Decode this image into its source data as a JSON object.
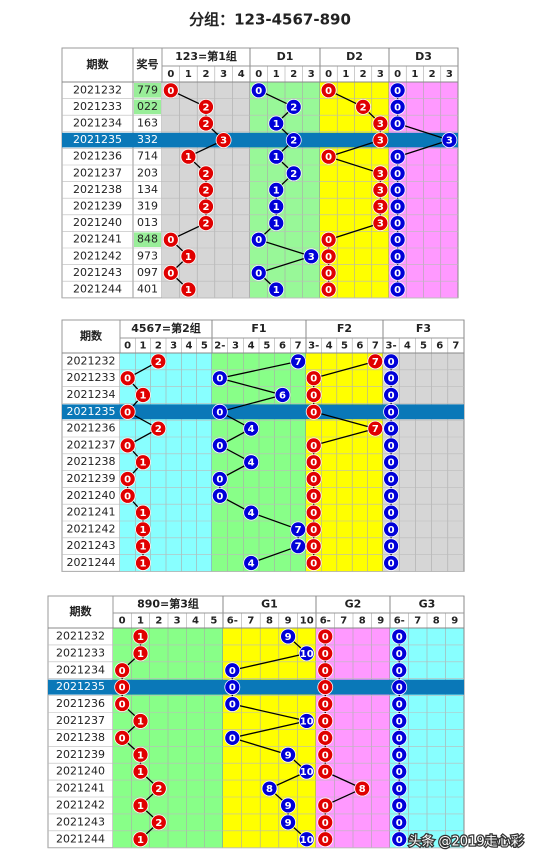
{
  "title": "分组：123-4567-890",
  "watermark": "头条 @2019走心彩",
  "tables": [
    {
      "headers": {
        "period": "期数",
        "number": "奖号"
      },
      "groups": [
        {
          "name": "123=第1组",
          "columns": [
            "0",
            "1",
            "2",
            "3",
            "4"
          ]
        },
        {
          "name": "D1",
          "columns": [
            "0",
            "1",
            "2",
            "3"
          ]
        },
        {
          "name": "D2",
          "columns": [
            "0",
            "1",
            "2",
            "3"
          ]
        },
        {
          "name": "D3",
          "columns": [
            "0",
            "1",
            "2",
            "3"
          ]
        }
      ],
      "rows": [
        {
          "period": "2021232",
          "number": "779",
          "marks": [
            "0",
            "0",
            "0",
            "0"
          ]
        },
        {
          "period": "2021233",
          "number": "022",
          "marks": [
            "2",
            "2",
            "2",
            "0"
          ]
        },
        {
          "period": "2021234",
          "number": "163",
          "marks": [
            "2",
            "1",
            "3",
            "0"
          ]
        },
        {
          "period": "2021235",
          "number": "332",
          "marks": [
            "3",
            "2",
            "3",
            "3"
          ]
        },
        {
          "period": "2021236",
          "number": "714",
          "marks": [
            "1",
            "1",
            "0",
            "0"
          ]
        },
        {
          "period": "2021237",
          "number": "203",
          "marks": [
            "2",
            "2",
            "3",
            "0"
          ]
        },
        {
          "period": "2021238",
          "number": "134",
          "marks": [
            "2",
            "1",
            "3",
            "0"
          ]
        },
        {
          "period": "2021239",
          "number": "319",
          "marks": [
            "2",
            "1",
            "3",
            "0"
          ]
        },
        {
          "period": "2021240",
          "number": "013",
          "marks": [
            "2",
            "1",
            "3",
            "0"
          ]
        },
        {
          "period": "2021241",
          "number": "848",
          "marks": [
            "0",
            "0",
            "0",
            "0"
          ]
        },
        {
          "period": "2021242",
          "number": "973",
          "marks": [
            "1",
            "3",
            "0",
            "0"
          ]
        },
        {
          "period": "2021243",
          "number": "097",
          "marks": [
            "0",
            "0",
            "0",
            "0"
          ]
        },
        {
          "period": "2021244",
          "number": "401",
          "marks": [
            "1",
            "1",
            "0",
            "0"
          ]
        }
      ]
    },
    {
      "headers": {
        "period": "期数"
      },
      "groups": [
        {
          "name": "4567=第2组",
          "columns": [
            "0",
            "1",
            "2",
            "3",
            "4",
            "5"
          ]
        },
        {
          "name": "F1",
          "columns": [
            "2-",
            "3",
            "4",
            "5",
            "6",
            "7"
          ]
        },
        {
          "name": "F2",
          "columns": [
            "3-",
            "4",
            "5",
            "6",
            "7"
          ]
        },
        {
          "name": "F3",
          "columns": [
            "3-",
            "4",
            "5",
            "6",
            "7"
          ]
        }
      ],
      "rows": [
        {
          "period": "2021232",
          "marks": [
            "2",
            "7",
            "7",
            "0"
          ]
        },
        {
          "period": "2021233",
          "marks": [
            "0",
            "0",
            "0",
            "0"
          ]
        },
        {
          "period": "2021234",
          "marks": [
            "1",
            "6",
            "0",
            "0"
          ]
        },
        {
          "period": "2021235",
          "marks": [
            "0",
            "0",
            "0",
            "0"
          ]
        },
        {
          "period": "2021236",
          "marks": [
            "2",
            "4",
            "7",
            "0"
          ]
        },
        {
          "period": "2021237",
          "marks": [
            "0",
            "0",
            "0",
            "0"
          ]
        },
        {
          "period": "2021238",
          "marks": [
            "1",
            "4",
            "0",
            "0"
          ]
        },
        {
          "period": "2021239",
          "marks": [
            "0",
            "0",
            "0",
            "0"
          ]
        },
        {
          "period": "2021240",
          "marks": [
            "0",
            "0",
            "0",
            "0"
          ]
        },
        {
          "period": "2021241",
          "marks": [
            "1",
            "4",
            "0",
            "0"
          ]
        },
        {
          "period": "2021242",
          "marks": [
            "1",
            "7",
            "0",
            "0"
          ]
        },
        {
          "period": "2021243",
          "marks": [
            "1",
            "7",
            "0",
            "0"
          ]
        },
        {
          "period": "2021244",
          "marks": [
            "1",
            "4",
            "0",
            "0"
          ]
        }
      ]
    },
    {
      "headers": {
        "period": "期数"
      },
      "groups": [
        {
          "name": "890=第3组",
          "columns": [
            "0",
            "1",
            "2",
            "3",
            "4",
            "5"
          ]
        },
        {
          "name": "G1",
          "columns": [
            "6-",
            "7",
            "8",
            "9",
            "10"
          ]
        },
        {
          "name": "G2",
          "columns": [
            "6-",
            "7",
            "8",
            "9"
          ]
        },
        {
          "name": "G3",
          "columns": [
            "6-",
            "7",
            "8",
            "9"
          ]
        }
      ],
      "rows": [
        {
          "period": "2021232",
          "marks": [
            "1",
            "9",
            "0",
            "0"
          ]
        },
        {
          "period": "2021233",
          "marks": [
            "1",
            "10",
            "0",
            "0"
          ]
        },
        {
          "period": "2021234",
          "marks": [
            "0",
            "0",
            "0",
            "0"
          ]
        },
        {
          "period": "2021235",
          "marks": [
            "0",
            "0",
            "0",
            "0"
          ]
        },
        {
          "period": "2021236",
          "marks": [
            "0",
            "0",
            "0",
            "0"
          ]
        },
        {
          "period": "2021237",
          "marks": [
            "1",
            "10",
            "0",
            "0"
          ]
        },
        {
          "period": "2021238",
          "marks": [
            "0",
            "0",
            "0",
            "0"
          ]
        },
        {
          "period": "2021239",
          "marks": [
            "1",
            "9",
            "0",
            "0"
          ]
        },
        {
          "period": "2021240",
          "marks": [
            "1",
            "10",
            "0",
            "0"
          ]
        },
        {
          "period": "2021241",
          "marks": [
            "2",
            "8",
            "8",
            "0"
          ]
        },
        {
          "period": "2021242",
          "marks": [
            "1",
            "9",
            "0",
            "0"
          ]
        },
        {
          "period": "2021243",
          "marks": [
            "2",
            "9",
            "0",
            "0"
          ]
        },
        {
          "period": "2021244",
          "marks": [
            "1",
            "10",
            "0",
            "0"
          ]
        }
      ]
    }
  ]
}
